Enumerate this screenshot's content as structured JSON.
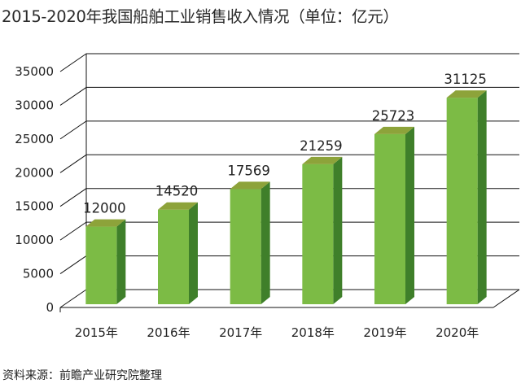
{
  "chart_data": {
    "type": "bar",
    "title": "2015-2020年我国船舶工业销售收入情况（单位：亿元）",
    "source": "资料来源：前瞻产业研究院整理",
    "categories": [
      "2015年",
      "2016年",
      "2017年",
      "2018年",
      "2019年",
      "2020年"
    ],
    "values": [
      12000,
      14520,
      17569,
      21259,
      25723,
      31125
    ],
    "data_labels": [
      "12000",
      "14520",
      "17569",
      "21259",
      "25723",
      "31125"
    ],
    "yticks": [
      "0",
      "5000",
      "10000",
      "15000",
      "20000",
      "25000",
      "30000",
      "35000"
    ],
    "ylim": [
      0,
      35000
    ],
    "grid": true,
    "colors": {
      "bar_front": "#7cbb45",
      "bar_side": "#3f7f2a",
      "bar_top": "#8da33a",
      "grid": "#111111"
    }
  }
}
